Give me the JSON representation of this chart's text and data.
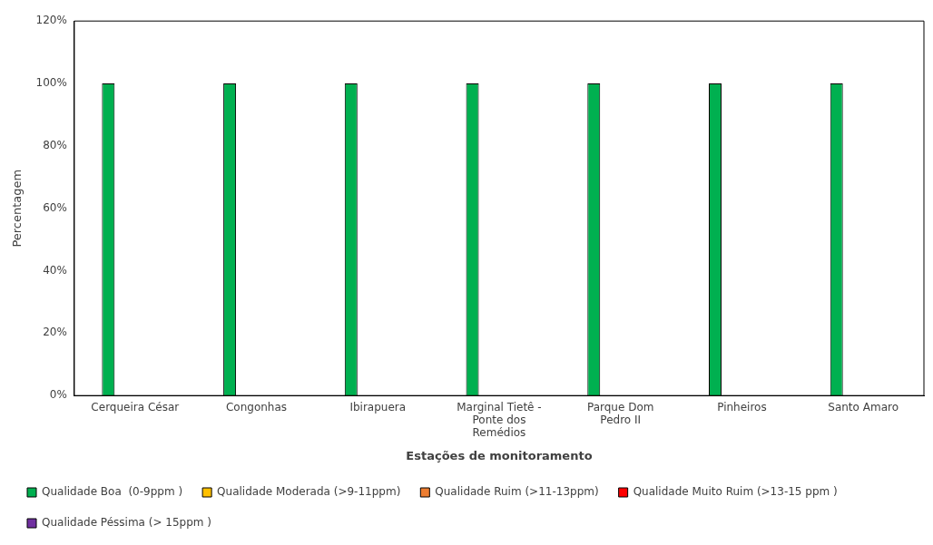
{
  "chart_data": {
    "type": "bar",
    "xlabel": "Estações de monitoramento",
    "ylabel": "Percentagem",
    "categories": [
      "Cerqueira César",
      "Congonhas",
      "Ibirapuera",
      "Marginal Tietê - Ponte dos Remédios",
      "Parque Dom Pedro II",
      "Pinheiros",
      "Santo Amaro"
    ],
    "series": [
      {
        "name": "Qualidade Boa  (0-9ppm )",
        "color": "#00b050",
        "values": [
          100,
          100,
          100,
          100,
          100,
          100,
          100
        ]
      },
      {
        "name": "Qualidade Moderada (>9-11ppm)",
        "color": "#ffc000",
        "values": [
          0,
          0,
          0,
          0,
          0,
          0,
          0
        ]
      },
      {
        "name": "Qualidade Ruim (>11-13ppm)",
        "color": "#ed7d31",
        "values": [
          0,
          0,
          0,
          0,
          0,
          0,
          0
        ]
      },
      {
        "name": "Qualidade Muito Ruim (>13-15 ppm )",
        "color": "#ff0000",
        "values": [
          0,
          0,
          0,
          0,
          0,
          0,
          0
        ]
      },
      {
        "name": "Qualidade Péssima (> 15ppm )",
        "color": "#7030a0",
        "values": [
          0,
          0,
          0,
          0,
          0,
          0,
          0
        ]
      }
    ],
    "ylim": [
      0,
      120
    ],
    "yticks": [
      {
        "value": 0,
        "label": "0%"
      },
      {
        "value": 20,
        "label": "20%"
      },
      {
        "value": 40,
        "label": "40%"
      },
      {
        "value": 60,
        "label": "60%"
      },
      {
        "value": 80,
        "label": "80%"
      },
      {
        "value": 100,
        "label": "100%"
      },
      {
        "value": 120,
        "label": "120%"
      }
    ],
    "grid": false,
    "legend": "bottom"
  }
}
